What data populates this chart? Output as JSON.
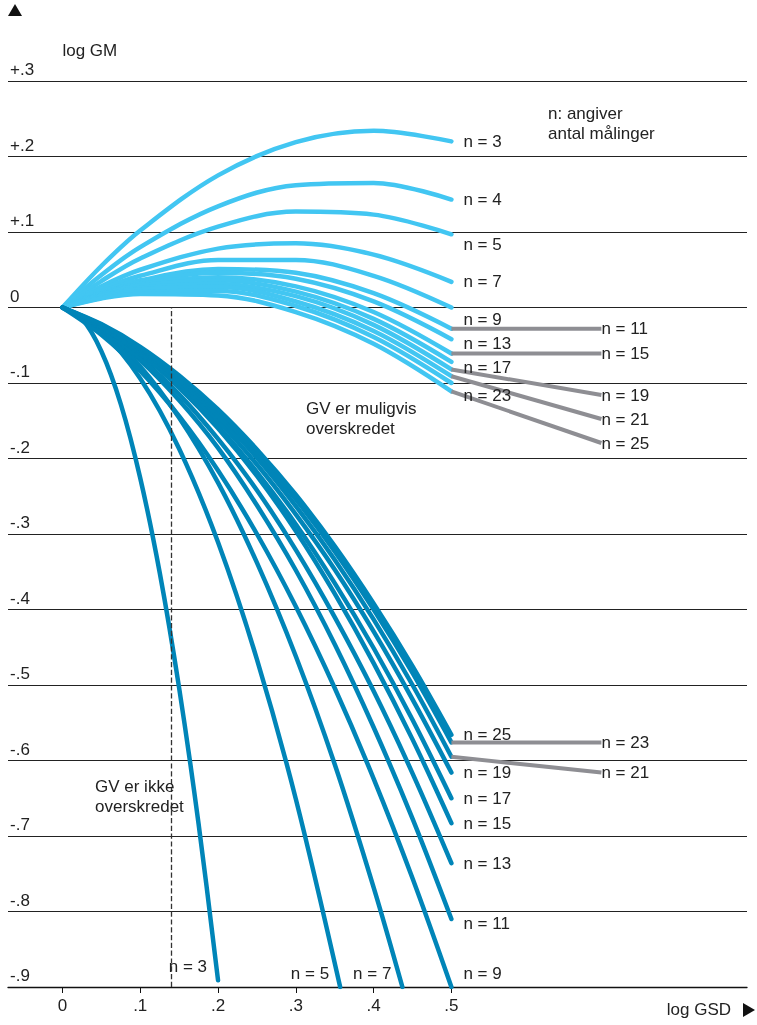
{
  "chart_data": {
    "type": "line",
    "ylabel": "log GM",
    "xlabel": "log GSD",
    "xlim": [
      -0.07,
      0.88
    ],
    "ylim": [
      -0.9,
      0.3
    ],
    "xticks": [
      {
        "value": 0,
        "label": "0"
      },
      {
        "value": 0.1,
        "label": ".1"
      },
      {
        "value": 0.2,
        "label": ".2"
      },
      {
        "value": 0.3,
        "label": ".3"
      },
      {
        "value": 0.4,
        "label": ".4"
      },
      {
        "value": 0.5,
        "label": ".5"
      }
    ],
    "yticks": [
      {
        "value": -0.9,
        "label": "-.9"
      },
      {
        "value": -0.8,
        "label": "-.8"
      },
      {
        "value": -0.7,
        "label": "-.7"
      },
      {
        "value": -0.6,
        "label": "-.6"
      },
      {
        "value": -0.5,
        "label": "-.5"
      },
      {
        "value": -0.4,
        "label": "-.4"
      },
      {
        "value": -0.3,
        "label": "-.3"
      },
      {
        "value": -0.2,
        "label": "-.2"
      },
      {
        "value": -0.1,
        "label": "-.1"
      },
      {
        "value": 0,
        "label": "0"
      },
      {
        "value": 0.1,
        "label": "+.1"
      },
      {
        "value": 0.2,
        "label": "+.2"
      },
      {
        "value": 0.3,
        "label": "+.3"
      }
    ],
    "grid": "y",
    "marker": "none",
    "line_style": "solid",
    "ref_lines": [
      {
        "axis": "x",
        "value": 0.14,
        "color": "#333333",
        "line_style": "dashed"
      }
    ],
    "annotations": [
      "n: angiver\nantal målinger",
      "GV er muligvis\noverskredet",
      "GV er ikke\noverskredet"
    ],
    "series": [
      {
        "name": "n = 3",
        "color": "#42c6f2",
        "x": [
          0,
          0.05,
          0.1,
          0.2,
          0.3,
          0.4,
          0.5
        ],
        "values": [
          0,
          0.055,
          0.102,
          0.175,
          0.219,
          0.234,
          0.22
        ]
      },
      {
        "name": "n = 4",
        "color": "#42c6f2",
        "x": [
          0,
          0.05,
          0.1,
          0.2,
          0.3,
          0.4,
          0.5
        ],
        "values": [
          0,
          0.043,
          0.08,
          0.134,
          0.162,
          0.165,
          0.143
        ]
      },
      {
        "name": "n = 5",
        "color": "#42c6f2",
        "x": [
          0,
          0.05,
          0.1,
          0.2,
          0.3,
          0.4,
          0.5
        ],
        "values": [
          0,
          0.035,
          0.065,
          0.107,
          0.127,
          0.123,
          0.097
        ]
      },
      {
        "name": "n = 7",
        "color": "#42c6f2",
        "x": [
          0,
          0.05,
          0.1,
          0.2,
          0.3,
          0.4,
          0.5
        ],
        "values": [
          0,
          0.028,
          0.05,
          0.078,
          0.085,
          0.07,
          0.034
        ]
      },
      {
        "name": "n = 9",
        "color": "#42c6f2",
        "x": [
          0,
          0.05,
          0.1,
          0.2,
          0.3,
          0.4,
          0.5
        ],
        "values": [
          0,
          0.024,
          0.042,
          0.063,
          0.063,
          0.042,
          0
        ]
      },
      {
        "name": "n = 11",
        "color": "#42c6f2",
        "x": [
          0,
          0.05,
          0.1,
          0.2,
          0.3,
          0.4,
          0.5
        ],
        "values": [
          0,
          0.021,
          0.036,
          0.051,
          0.046,
          0.019,
          -0.028
        ]
      },
      {
        "name": "n = 13",
        "color": "#42c6f2",
        "x": [
          0,
          0.05,
          0.1,
          0.2,
          0.3,
          0.4,
          0.5
        ],
        "values": [
          0,
          0.019,
          0.033,
          0.046,
          0.038,
          0.008,
          -0.042
        ]
      },
      {
        "name": "n = 15",
        "color": "#42c6f2",
        "x": [
          0,
          0.05,
          0.1,
          0.2,
          0.3,
          0.4,
          0.5
        ],
        "values": [
          0,
          0.018,
          0.031,
          0.04,
          0.028,
          -0.006,
          -0.061
        ]
      },
      {
        "name": "n = 17",
        "color": "#42c6f2",
        "x": [
          0,
          0.05,
          0.1,
          0.2,
          0.3,
          0.4,
          0.5
        ],
        "values": [
          0,
          0.017,
          0.029,
          0.036,
          0.021,
          -0.015,
          -0.072
        ]
      },
      {
        "name": "n = 19",
        "color": "#42c6f2",
        "x": [
          0,
          0.05,
          0.1,
          0.2,
          0.3,
          0.4,
          0.5
        ],
        "values": [
          0,
          0.016,
          0.026,
          0.031,
          0.015,
          -0.023,
          -0.082
        ]
      },
      {
        "name": "n = 21",
        "color": "#42c6f2",
        "x": [
          0,
          0.05,
          0.1,
          0.2,
          0.3,
          0.4,
          0.5
        ],
        "values": [
          0,
          0.015,
          0.024,
          0.027,
          0.008,
          -0.031,
          -0.091
        ]
      },
      {
        "name": "n = 23",
        "color": "#42c6f2",
        "x": [
          0,
          0.05,
          0.1,
          0.2,
          0.3,
          0.4,
          0.5
        ],
        "values": [
          0,
          0.013,
          0.021,
          0.022,
          0.002,
          -0.039,
          -0.1
        ]
      },
      {
        "name": "n = 25",
        "color": "#42c6f2",
        "x": [
          0,
          0.05,
          0.1,
          0.2,
          0.3,
          0.4,
          0.5
        ],
        "values": [
          0,
          0.012,
          0.018,
          0.016,
          -0.006,
          -0.048,
          -0.111
        ]
      },
      {
        "name": "n = 3",
        "color": "#0085b8",
        "x": [
          0,
          0.025,
          0.05,
          0.075,
          0.1,
          0.125,
          0.15,
          0.175,
          0.2
        ],
        "values": [
          0,
          -0.015,
          -0.058,
          -0.128,
          -0.226,
          -0.351,
          -0.504,
          -0.684,
          -0.891
        ]
      },
      {
        "name": "n = 5",
        "color": "#0085b8",
        "x": [
          0,
          0.05,
          0.1,
          0.15,
          0.2,
          0.25,
          0.3,
          0.357
        ],
        "values": [
          0,
          -0.032,
          -0.094,
          -0.187,
          -0.311,
          -0.466,
          -0.651,
          -0.9
        ]
      },
      {
        "name": "n = 7",
        "color": "#0085b8",
        "x": [
          0,
          0.05,
          0.1,
          0.15,
          0.2,
          0.25,
          0.3,
          0.35,
          0.4,
          0.437
        ],
        "values": [
          0,
          -0.03,
          -0.078,
          -0.146,
          -0.232,
          -0.338,
          -0.462,
          -0.605,
          -0.768,
          -0.9
        ]
      },
      {
        "name": "n = 9",
        "color": "#0085b8",
        "x": [
          0,
          0.05,
          0.1,
          0.15,
          0.2,
          0.25,
          0.3,
          0.35,
          0.4,
          0.45,
          0.5
        ],
        "values": [
          0,
          -0.036,
          -0.084,
          -0.144,
          -0.216,
          -0.3,
          -0.396,
          -0.504,
          -0.624,
          -0.756,
          -0.9
        ]
      },
      {
        "name": "n = 11",
        "color": "#0085b8",
        "x": [
          0,
          0.05,
          0.1,
          0.15,
          0.2,
          0.25,
          0.3,
          0.35,
          0.4,
          0.45,
          0.5
        ],
        "values": [
          0,
          -0.029,
          -0.07,
          -0.123,
          -0.186,
          -0.262,
          -0.348,
          -0.446,
          -0.556,
          -0.677,
          -0.81
        ]
      },
      {
        "name": "n = 13",
        "color": "#0085b8",
        "x": [
          0,
          0.05,
          0.1,
          0.15,
          0.2,
          0.25,
          0.3,
          0.35,
          0.4,
          0.45,
          0.5
        ],
        "values": [
          0,
          -0.028,
          -0.067,
          -0.115,
          -0.174,
          -0.242,
          -0.321,
          -0.41,
          -0.508,
          -0.617,
          -0.736
        ]
      },
      {
        "name": "n = 15",
        "color": "#0085b8",
        "x": [
          0,
          0.05,
          0.1,
          0.15,
          0.2,
          0.25,
          0.3,
          0.35,
          0.4,
          0.45,
          0.5
        ],
        "values": [
          0,
          -0.026,
          -0.061,
          -0.106,
          -0.16,
          -0.223,
          -0.296,
          -0.379,
          -0.471,
          -0.572,
          -0.683
        ]
      },
      {
        "name": "n = 17",
        "color": "#0085b8",
        "x": [
          0,
          0.05,
          0.1,
          0.15,
          0.2,
          0.25,
          0.3,
          0.35,
          0.4,
          0.45,
          0.5
        ],
        "values": [
          0,
          -0.026,
          -0.061,
          -0.105,
          -0.157,
          -0.218,
          -0.287,
          -0.365,
          -0.451,
          -0.546,
          -0.65
        ]
      },
      {
        "name": "n = 19",
        "color": "#0085b8",
        "x": [
          0,
          0.05,
          0.1,
          0.15,
          0.2,
          0.25,
          0.3,
          0.35,
          0.4,
          0.45,
          0.5
        ],
        "values": [
          0,
          -0.026,
          -0.059,
          -0.101,
          -0.15,
          -0.208,
          -0.274,
          -0.347,
          -0.429,
          -0.519,
          -0.616
        ]
      },
      {
        "name": "n = 21",
        "color": "#0085b8",
        "x": [
          0,
          0.05,
          0.1,
          0.15,
          0.2,
          0.25,
          0.3,
          0.35,
          0.4,
          0.45,
          0.5
        ],
        "values": [
          0,
          -0.024,
          -0.056,
          -0.096,
          -0.144,
          -0.199,
          -0.263,
          -0.334,
          -0.413,
          -0.5,
          -0.595
        ]
      },
      {
        "name": "n = 23",
        "color": "#0085b8",
        "x": [
          0,
          0.05,
          0.1,
          0.15,
          0.2,
          0.25,
          0.3,
          0.35,
          0.4,
          0.45,
          0.5
        ],
        "values": [
          0,
          -0.023,
          -0.054,
          -0.093,
          -0.139,
          -0.193,
          -0.254,
          -0.323,
          -0.4,
          -0.484,
          -0.576
        ]
      },
      {
        "name": "n = 25",
        "color": "#0085b8",
        "x": [
          0,
          0.05,
          0.1,
          0.15,
          0.2,
          0.25,
          0.3,
          0.35,
          0.4,
          0.45,
          0.5
        ],
        "values": [
          0,
          -0.022,
          -0.052,
          -0.09,
          -0.135,
          -0.188,
          -0.248,
          -0.316,
          -0.392,
          -0.475,
          -0.566
        ]
      }
    ]
  }
}
